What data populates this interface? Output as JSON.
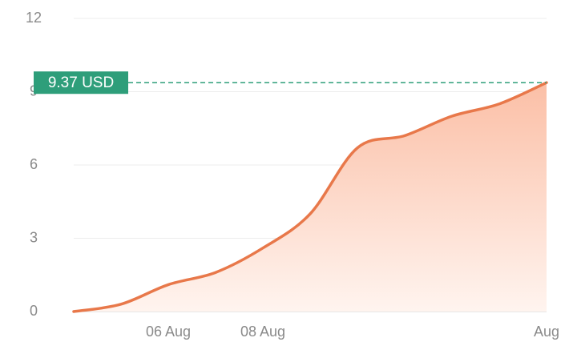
{
  "chart_data": {
    "type": "area",
    "x": [
      null,
      null,
      "06 Aug",
      null,
      "08 Aug",
      null,
      null,
      null,
      null,
      null,
      "Aug"
    ],
    "series": [
      {
        "color": "#e8784a",
        "values": [
          0,
          0.3,
          1.1,
          1.6,
          2.6,
          4.0,
          6.7,
          7.2,
          8.0,
          8.5,
          9.37
        ]
      }
    ],
    "ylim": [
      0,
      12
    ],
    "yticks": [
      0,
      3,
      6,
      9,
      12
    ],
    "grid": true,
    "marker": {
      "value": 9.37,
      "label": "9.37 USD",
      "color": "#2e9e7a"
    }
  }
}
